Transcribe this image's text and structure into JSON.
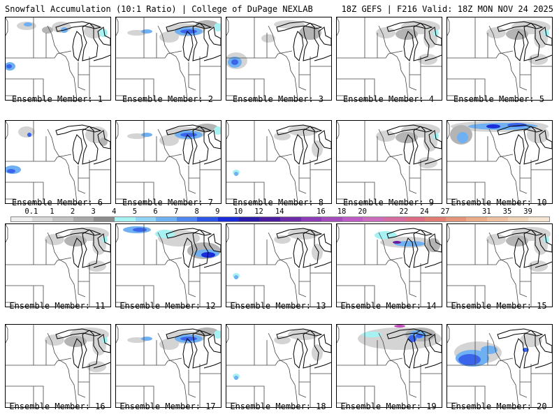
{
  "header": {
    "left": "Snowfall Accumulation (10:1 Ratio) | College of DuPage NEXLAB",
    "right": "18Z GEFS | F216 Valid: 18Z MON NOV 24 2025"
  },
  "colorbar": {
    "ticks": [
      "0.1",
      "1",
      "2",
      "3",
      "4",
      "5",
      "6",
      "7",
      "8",
      "9",
      "10",
      "12",
      "14",
      "16",
      "18",
      "20",
      "22",
      "24",
      "27",
      "31",
      "35",
      "39"
    ],
    "colors": [
      "#eeeeee",
      "#d8d8d8",
      "#c2c2c2",
      "#a8a8a8",
      "#8c8c8c",
      "#a6f1f2",
      "#8fd4f5",
      "#6fb0f3",
      "#4f86ef",
      "#2d56e6",
      "#1a2cd8",
      "#2a1ca8",
      "#4b1ca0",
      "#6c2ca8",
      "#8c3cb4",
      "#a44cbc",
      "#bc5cc4",
      "#cc6cbc",
      "#d46ca0",
      "#dc6c84",
      "#e07c74",
      "#e49478",
      "#e8ac88",
      "#ecc0a0",
      "#f0d4b8",
      "#f4e4d0"
    ]
  },
  "members": [
    {
      "label": "Ensemble Member: 1",
      "snow": "nw_light"
    },
    {
      "label": "Ensemble Member: 2",
      "snow": "north_band"
    },
    {
      "label": "Ensemble Member: 3",
      "snow": "plains_blob"
    },
    {
      "label": "Ensemble Member: 4",
      "snow": "lakes_light"
    },
    {
      "label": "Ensemble Member: 5",
      "snow": "lakes_light"
    },
    {
      "label": "Ensemble Member: 6",
      "snow": "sw_blob"
    },
    {
      "label": "Ensemble Member: 7",
      "snow": "north_band"
    },
    {
      "label": "Ensemble Member: 8",
      "snow": "minimal"
    },
    {
      "label": "Ensemble Member: 9",
      "snow": "lakes_light"
    },
    {
      "label": "Ensemble Member: 10",
      "snow": "north_heavy"
    },
    {
      "label": "Ensemble Member: 11",
      "snow": "lakes_light"
    },
    {
      "label": "Ensemble Member: 12",
      "snow": "ohio_band"
    },
    {
      "label": "Ensemble Member: 13",
      "snow": "minimal"
    },
    {
      "label": "Ensemble Member: 14",
      "snow": "mich_band"
    },
    {
      "label": "Ensemble Member: 15",
      "snow": "lakes_light"
    },
    {
      "label": "Ensemble Member: 16",
      "snow": "lakes_light"
    },
    {
      "label": "Ensemble Member: 17",
      "snow": "north_band"
    },
    {
      "label": "Ensemble Member: 18",
      "snow": "minimal"
    },
    {
      "label": "Ensemble Member: 19",
      "snow": "lakes_heavy"
    },
    {
      "label": "Ensemble Member: 20",
      "snow": "west_blob"
    }
  ]
}
